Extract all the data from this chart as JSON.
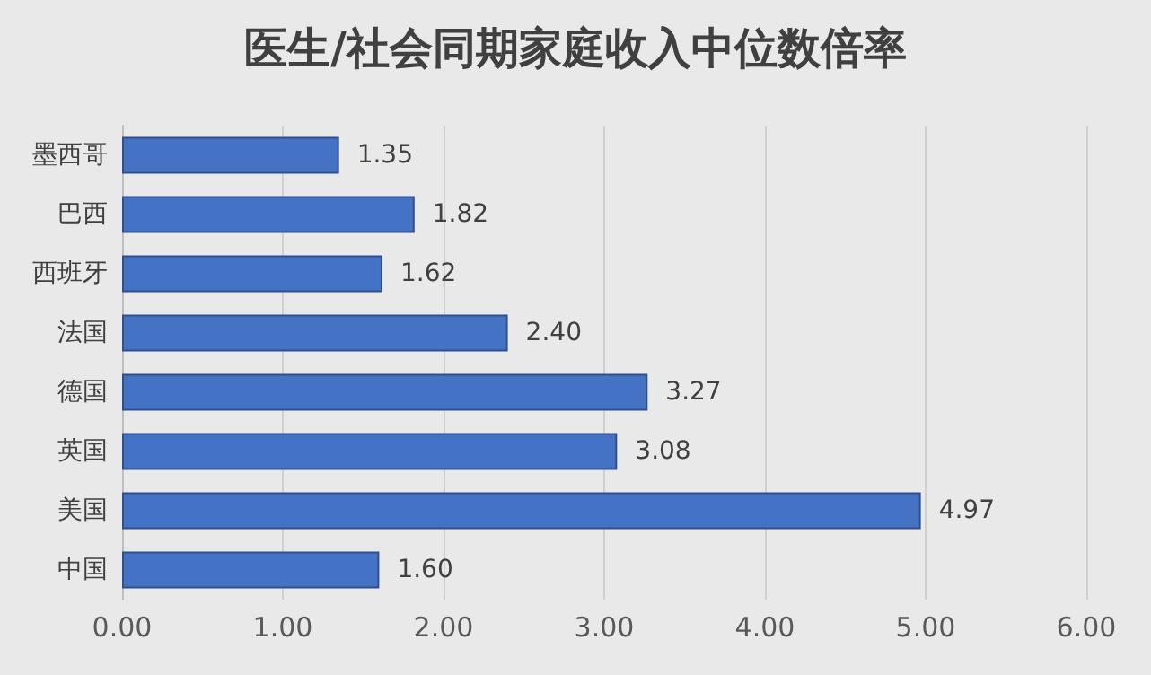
{
  "chart_data": {
    "type": "bar",
    "orientation": "horizontal",
    "title": "医生/社会同期家庭收入中位数倍率",
    "categories": [
      "墨西哥",
      "巴西",
      "西班牙",
      "法国",
      "德国",
      "英国",
      "美国",
      "中国"
    ],
    "values": [
      1.35,
      1.82,
      1.62,
      2.4,
      3.27,
      3.08,
      4.97,
      1.6
    ],
    "value_labels": [
      "1.35",
      "1.82",
      "1.62",
      "2.40",
      "3.27",
      "3.08",
      "4.97",
      "1.60"
    ],
    "color": "#4472c4",
    "xlim": [
      0,
      6
    ],
    "xticks": [
      {
        "value": 0,
        "label": "0.00"
      },
      {
        "value": 1,
        "label": "1.00"
      },
      {
        "value": 2,
        "label": "2.00"
      },
      {
        "value": 3,
        "label": "3.00"
      },
      {
        "value": 4,
        "label": "4.00"
      },
      {
        "value": 5,
        "label": "5.00"
      },
      {
        "value": 6,
        "label": "6.00"
      }
    ],
    "grid": "x"
  }
}
